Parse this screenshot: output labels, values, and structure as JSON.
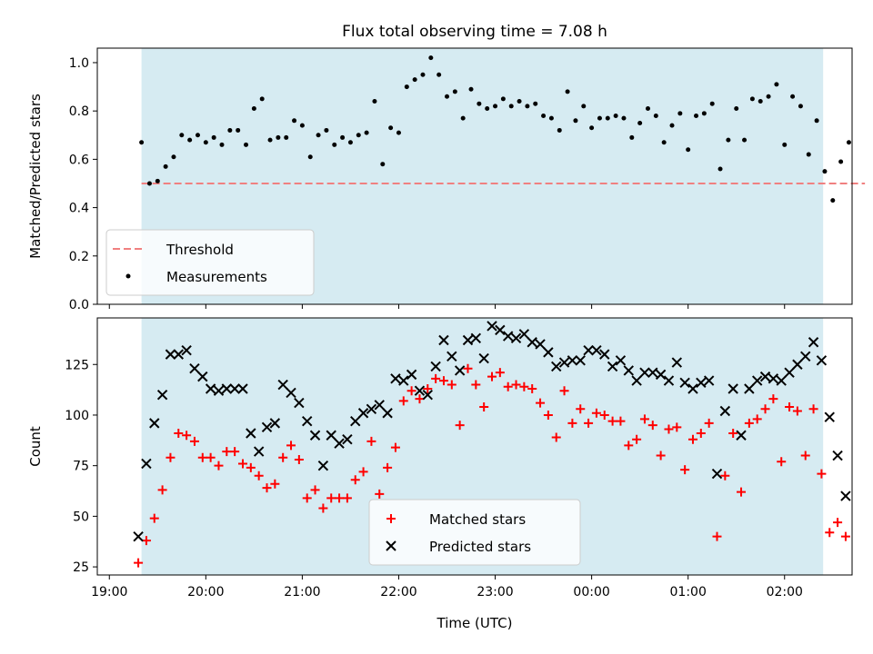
{
  "title": "Flux total observing time = 7.08 h",
  "chart_data": [
    {
      "type": "scatter",
      "ylabel": "Matched/Predicted stars",
      "ylim": [
        0,
        1.06
      ],
      "yticks": [
        0.0,
        0.2,
        0.4,
        0.6,
        0.8,
        1.0
      ],
      "yticklabels": [
        "0.0",
        "0.2",
        "0.4",
        "0.6",
        "0.8",
        "1.0"
      ],
      "legend_position": "lower-left",
      "observing_window": [
        "19:20",
        "02:24"
      ],
      "threshold": {
        "name": "Threshold",
        "value": 0.5,
        "x_range": [
          "19:20",
          "02:50"
        ],
        "color": "#f08080"
      },
      "series": [
        {
          "name": "Measurements",
          "color": "#000000",
          "x": [
            "19:20",
            "19:25",
            "19:30",
            "19:35",
            "19:40",
            "19:45",
            "19:50",
            "19:55",
            "20:00",
            "20:05",
            "20:10",
            "20:15",
            "20:20",
            "20:25",
            "20:30",
            "20:35",
            "20:40",
            "20:45",
            "20:50",
            "20:55",
            "21:00",
            "21:05",
            "21:10",
            "21:15",
            "21:20",
            "21:25",
            "21:30",
            "21:35",
            "21:40",
            "21:45",
            "21:50",
            "21:55",
            "22:00",
            "22:05",
            "22:10",
            "22:15",
            "22:20",
            "22:25",
            "22:30",
            "22:35",
            "22:40",
            "22:45",
            "22:50",
            "22:55",
            "23:00",
            "23:05",
            "23:10",
            "23:15",
            "23:20",
            "23:25",
            "23:30",
            "23:35",
            "23:40",
            "23:45",
            "23:50",
            "23:55",
            "00:00",
            "00:05",
            "00:10",
            "00:15",
            "00:20",
            "00:25",
            "00:30",
            "00:35",
            "00:40",
            "00:45",
            "00:50",
            "00:55",
            "01:00",
            "01:05",
            "01:10",
            "01:15",
            "01:20",
            "01:25",
            "01:30",
            "01:35",
            "01:40",
            "01:45",
            "01:50",
            "01:55",
            "02:00",
            "02:05",
            "02:10",
            "02:15",
            "02:20",
            "02:25",
            "02:30",
            "02:35",
            "02:40"
          ],
          "y": [
            0.67,
            0.5,
            0.51,
            0.57,
            0.61,
            0.7,
            0.68,
            0.7,
            0.67,
            0.69,
            0.66,
            0.72,
            0.72,
            0.66,
            0.81,
            0.85,
            0.68,
            0.69,
            0.69,
            0.76,
            0.74,
            0.61,
            0.7,
            0.72,
            0.66,
            0.69,
            0.67,
            0.7,
            0.71,
            0.84,
            0.58,
            0.73,
            0.71,
            0.9,
            0.93,
            0.95,
            1.02,
            0.95,
            0.86,
            0.88,
            0.77,
            0.89,
            0.83,
            0.81,
            0.82,
            0.85,
            0.82,
            0.84,
            0.82,
            0.83,
            0.78,
            0.77,
            0.72,
            0.88,
            0.76,
            0.82,
            0.73,
            0.77,
            0.77,
            0.78,
            0.77,
            0.69,
            0.75,
            0.81,
            0.78,
            0.67,
            0.74,
            0.79,
            0.64,
            0.78,
            0.79,
            0.83,
            0.56,
            0.68,
            0.81,
            0.68,
            0.85,
            0.84,
            0.86,
            0.91,
            0.66,
            0.86,
            0.82,
            0.62,
            0.76,
            0.55,
            0.43,
            0.59,
            0.67
          ]
        }
      ]
    },
    {
      "type": "scatter",
      "xlabel": "Time (UTC)",
      "ylabel": "Count",
      "ylim": [
        21,
        148
      ],
      "yticks": [
        25,
        50,
        75,
        100,
        125
      ],
      "yticklabels": [
        "25",
        "50",
        "75",
        "100",
        "125"
      ],
      "xticks": [
        "19:00",
        "20:00",
        "21:00",
        "22:00",
        "23:00",
        "00:00",
        "01:00",
        "02:00"
      ],
      "legend_position": "lower-center",
      "observing_window": [
        "19:20",
        "02:24"
      ],
      "series": [
        {
          "name": "Matched stars",
          "marker": "+",
          "color": "#ff0000",
          "x": [
            "19:18",
            "19:23",
            "19:28",
            "19:33",
            "19:38",
            "19:43",
            "19:48",
            "19:53",
            "19:58",
            "20:03",
            "20:08",
            "20:13",
            "20:18",
            "20:23",
            "20:28",
            "20:33",
            "20:38",
            "20:43",
            "20:48",
            "20:53",
            "20:58",
            "21:03",
            "21:08",
            "21:13",
            "21:18",
            "21:23",
            "21:28",
            "21:33",
            "21:38",
            "21:43",
            "21:48",
            "21:53",
            "21:58",
            "22:03",
            "22:08",
            "22:13",
            "22:18",
            "22:23",
            "22:28",
            "22:33",
            "22:38",
            "22:43",
            "22:48",
            "22:53",
            "22:58",
            "23:03",
            "23:08",
            "23:13",
            "23:18",
            "23:23",
            "23:28",
            "23:33",
            "23:38",
            "23:43",
            "23:48",
            "23:53",
            "23:58",
            "00:03",
            "00:08",
            "00:13",
            "00:18",
            "00:23",
            "00:28",
            "00:33",
            "00:38",
            "00:43",
            "00:48",
            "00:53",
            "00:58",
            "01:03",
            "01:08",
            "01:13",
            "01:18",
            "01:23",
            "01:28",
            "01:33",
            "01:38",
            "01:43",
            "01:48",
            "01:53",
            "01:58",
            "02:03",
            "02:08",
            "02:13",
            "02:18",
            "02:23",
            "02:28",
            "02:33",
            "02:38"
          ],
          "y": [
            27,
            38,
            49,
            63,
            79,
            91,
            90,
            87,
            79,
            79,
            75,
            82,
            82,
            76,
            74,
            70,
            64,
            66,
            79,
            85,
            78,
            59,
            63,
            54,
            59,
            59,
            59,
            68,
            72,
            87,
            61,
            74,
            84,
            107,
            112,
            108,
            113,
            118,
            117,
            115,
            95,
            123,
            115,
            104,
            119,
            121,
            114,
            115,
            114,
            113,
            106,
            100,
            89,
            112,
            96,
            103,
            96,
            101,
            100,
            97,
            97,
            85,
            88,
            98,
            95,
            80,
            93,
            94,
            73,
            88,
            91,
            96,
            40,
            70,
            91,
            62,
            96,
            98,
            103,
            108,
            77,
            104,
            102,
            80,
            103,
            71,
            42,
            47,
            40
          ]
        },
        {
          "name": "Predicted stars",
          "marker": "x",
          "color": "#000000",
          "x": [
            "19:18",
            "19:23",
            "19:28",
            "19:33",
            "19:38",
            "19:43",
            "19:48",
            "19:53",
            "19:58",
            "20:03",
            "20:08",
            "20:13",
            "20:18",
            "20:23",
            "20:28",
            "20:33",
            "20:38",
            "20:43",
            "20:48",
            "20:53",
            "20:58",
            "21:03",
            "21:08",
            "21:13",
            "21:18",
            "21:23",
            "21:28",
            "21:33",
            "21:38",
            "21:43",
            "21:48",
            "21:53",
            "21:58",
            "22:03",
            "22:08",
            "22:13",
            "22:18",
            "22:23",
            "22:28",
            "22:33",
            "22:38",
            "22:43",
            "22:48",
            "22:53",
            "22:58",
            "23:03",
            "23:08",
            "23:13",
            "23:18",
            "23:23",
            "23:28",
            "23:33",
            "23:38",
            "23:43",
            "23:48",
            "23:53",
            "23:58",
            "00:03",
            "00:08",
            "00:13",
            "00:18",
            "00:23",
            "00:28",
            "00:33",
            "00:38",
            "00:43",
            "00:48",
            "00:53",
            "00:58",
            "01:03",
            "01:08",
            "01:13",
            "01:18",
            "01:23",
            "01:28",
            "01:33",
            "01:38",
            "01:43",
            "01:48",
            "01:53",
            "01:58",
            "02:03",
            "02:08",
            "02:13",
            "02:18",
            "02:23",
            "02:28",
            "02:33",
            "02:38"
          ],
          "y": [
            40,
            76,
            96,
            110,
            130,
            130,
            132,
            123,
            119,
            113,
            112,
            113,
            113,
            113,
            91,
            82,
            94,
            96,
            115,
            111,
            106,
            97,
            90,
            75,
            90,
            86,
            88,
            97,
            101,
            103,
            105,
            101,
            118,
            117,
            120,
            112,
            110,
            124,
            137,
            129,
            122,
            137,
            138,
            128,
            144,
            142,
            139,
            138,
            140,
            136,
            135,
            131,
            124,
            126,
            127,
            127,
            132,
            132,
            130,
            124,
            127,
            122,
            117,
            121,
            121,
            120,
            117,
            126,
            116,
            113,
            116,
            117,
            71,
            102,
            113,
            90,
            113,
            117,
            119,
            118,
            117,
            121,
            125,
            129,
            136,
            127,
            99,
            80,
            60
          ]
        }
      ]
    }
  ]
}
